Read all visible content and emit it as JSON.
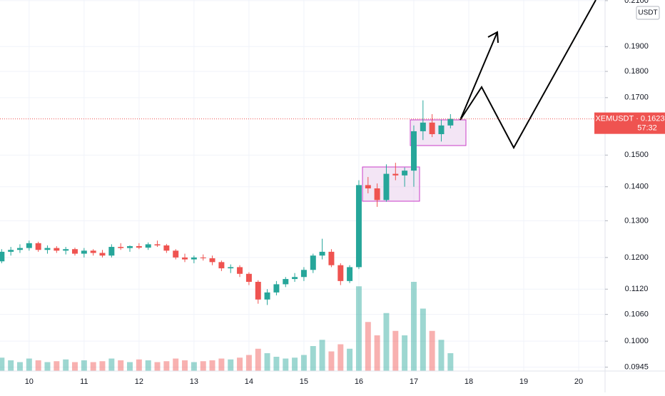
{
  "chart_data": {
    "type": "candlestick",
    "symbol": "XEMUSDT",
    "currency": "USDT",
    "last_price": 0.1623,
    "countdown": "57:32",
    "log_scale": true,
    "grid": true,
    "up_color": "#26a69a",
    "down_color": "#ef5350",
    "xlim": [
      9.47,
      20.48
    ],
    "xticks": [
      10,
      11,
      12,
      13,
      14,
      15,
      16,
      17,
      18,
      19,
      20
    ],
    "ylim": [
      0.0937,
      0.2103
    ],
    "yticks": [
      0.0945,
      {
        "value": 0.1,
        "label": "0.1000"
      },
      {
        "value": 0.106,
        "label": "0.1060"
      },
      {
        "value": 0.112,
        "label": "0.1120"
      },
      {
        "value": 0.12,
        "label": "0.1200"
      },
      {
        "value": 0.13,
        "label": "0.1300"
      },
      {
        "value": 0.14,
        "label": "0.1400"
      },
      {
        "value": 0.15,
        "label": "0.1500"
      },
      {
        "value": 0.17,
        "label": "0.1700"
      },
      {
        "value": 0.18,
        "label": "0.1800"
      },
      {
        "value": 0.19,
        "label": "0.1900"
      },
      {
        "value": 0.21,
        "label": "0.2100"
      }
    ],
    "x": [
      9.5,
      9.667,
      9.833,
      10.0,
      10.167,
      10.333,
      10.5,
      10.667,
      10.833,
      11.0,
      11.167,
      11.333,
      11.5,
      11.667,
      11.833,
      12.0,
      12.167,
      12.333,
      12.5,
      12.667,
      12.833,
      13.0,
      13.167,
      13.333,
      13.5,
      13.667,
      13.833,
      14.0,
      14.167,
      14.333,
      14.5,
      14.667,
      14.833,
      15.0,
      15.167,
      15.333,
      15.5,
      15.667,
      15.833,
      16.0,
      16.167,
      16.333,
      16.5,
      16.667,
      16.833,
      17.0,
      17.167,
      17.333,
      17.5,
      17.667
    ],
    "open": [
      0.119,
      0.1215,
      0.122,
      0.1225,
      0.1238,
      0.122,
      0.1225,
      0.1218,
      0.1222,
      0.121,
      0.1218,
      0.1212,
      0.1205,
      0.1228,
      0.1225,
      0.123,
      0.1226,
      0.1235,
      0.1232,
      0.1218,
      0.12,
      0.1195,
      0.12,
      0.1198,
      0.1188,
      0.1172,
      0.1175,
      0.1158,
      0.1138,
      0.1095,
      0.1112,
      0.1132,
      0.1145,
      0.115,
      0.1168,
      0.1205,
      0.1215,
      0.118,
      0.114,
      0.1175,
      0.1405,
      0.1395,
      0.136,
      0.144,
      0.1435,
      0.145,
      0.158,
      0.161,
      0.157,
      0.16
    ],
    "high": [
      0.1222,
      0.1228,
      0.1235,
      0.1245,
      0.1242,
      0.1232,
      0.123,
      0.1228,
      0.1226,
      0.1225,
      0.1222,
      0.122,
      0.1235,
      0.1238,
      0.1232,
      0.1238,
      0.124,
      0.1245,
      0.1236,
      0.1222,
      0.121,
      0.1205,
      0.1208,
      0.1205,
      0.1192,
      0.1182,
      0.118,
      0.1162,
      0.1142,
      0.112,
      0.114,
      0.115,
      0.116,
      0.1175,
      0.121,
      0.125,
      0.1222,
      0.1185,
      0.118,
      0.142,
      0.143,
      0.141,
      0.147,
      0.1475,
      0.146,
      0.16,
      0.169,
      0.164,
      0.162,
      0.164
    ],
    "low": [
      0.1185,
      0.1205,
      0.1212,
      0.1218,
      0.1215,
      0.121,
      0.1212,
      0.1208,
      0.1205,
      0.12,
      0.1205,
      0.12,
      0.12,
      0.122,
      0.1215,
      0.1222,
      0.122,
      0.1228,
      0.1212,
      0.1195,
      0.1188,
      0.1185,
      0.1192,
      0.118,
      0.1165,
      0.116,
      0.115,
      0.113,
      0.1085,
      0.1082,
      0.1105,
      0.1125,
      0.1138,
      0.114,
      0.116,
      0.1195,
      0.1175,
      0.113,
      0.1135,
      0.117,
      0.138,
      0.134,
      0.1355,
      0.142,
      0.14,
      0.14,
      0.155,
      0.156,
      0.1545,
      0.159
    ],
    "close": [
      0.1215,
      0.122,
      0.1225,
      0.1238,
      0.122,
      0.1225,
      0.1218,
      0.1222,
      0.121,
      0.1218,
      0.1212,
      0.1205,
      0.1228,
      0.1225,
      0.123,
      0.1226,
      0.1235,
      0.1232,
      0.1218,
      0.12,
      0.1195,
      0.12,
      0.1198,
      0.1188,
      0.1172,
      0.1175,
      0.1158,
      0.1138,
      0.1095,
      0.1112,
      0.1132,
      0.1145,
      0.115,
      0.1168,
      0.1205,
      0.1215,
      0.118,
      0.114,
      0.1175,
      0.1405,
      0.1395,
      0.136,
      0.144,
      0.1435,
      0.145,
      0.158,
      0.161,
      0.157,
      0.16,
      0.1623
    ],
    "volume": [
      15,
      12,
      10,
      14,
      12,
      10,
      11,
      13,
      10,
      12,
      10,
      11,
      14,
      12,
      10,
      13,
      12,
      10,
      11,
      14,
      12,
      10,
      11,
      12,
      14,
      13,
      15,
      18,
      25,
      20,
      16,
      14,
      15,
      18,
      28,
      35,
      22,
      30,
      25,
      95,
      55,
      40,
      65,
      45,
      40,
      100,
      70,
      45,
      35,
      20
    ]
  }
}
